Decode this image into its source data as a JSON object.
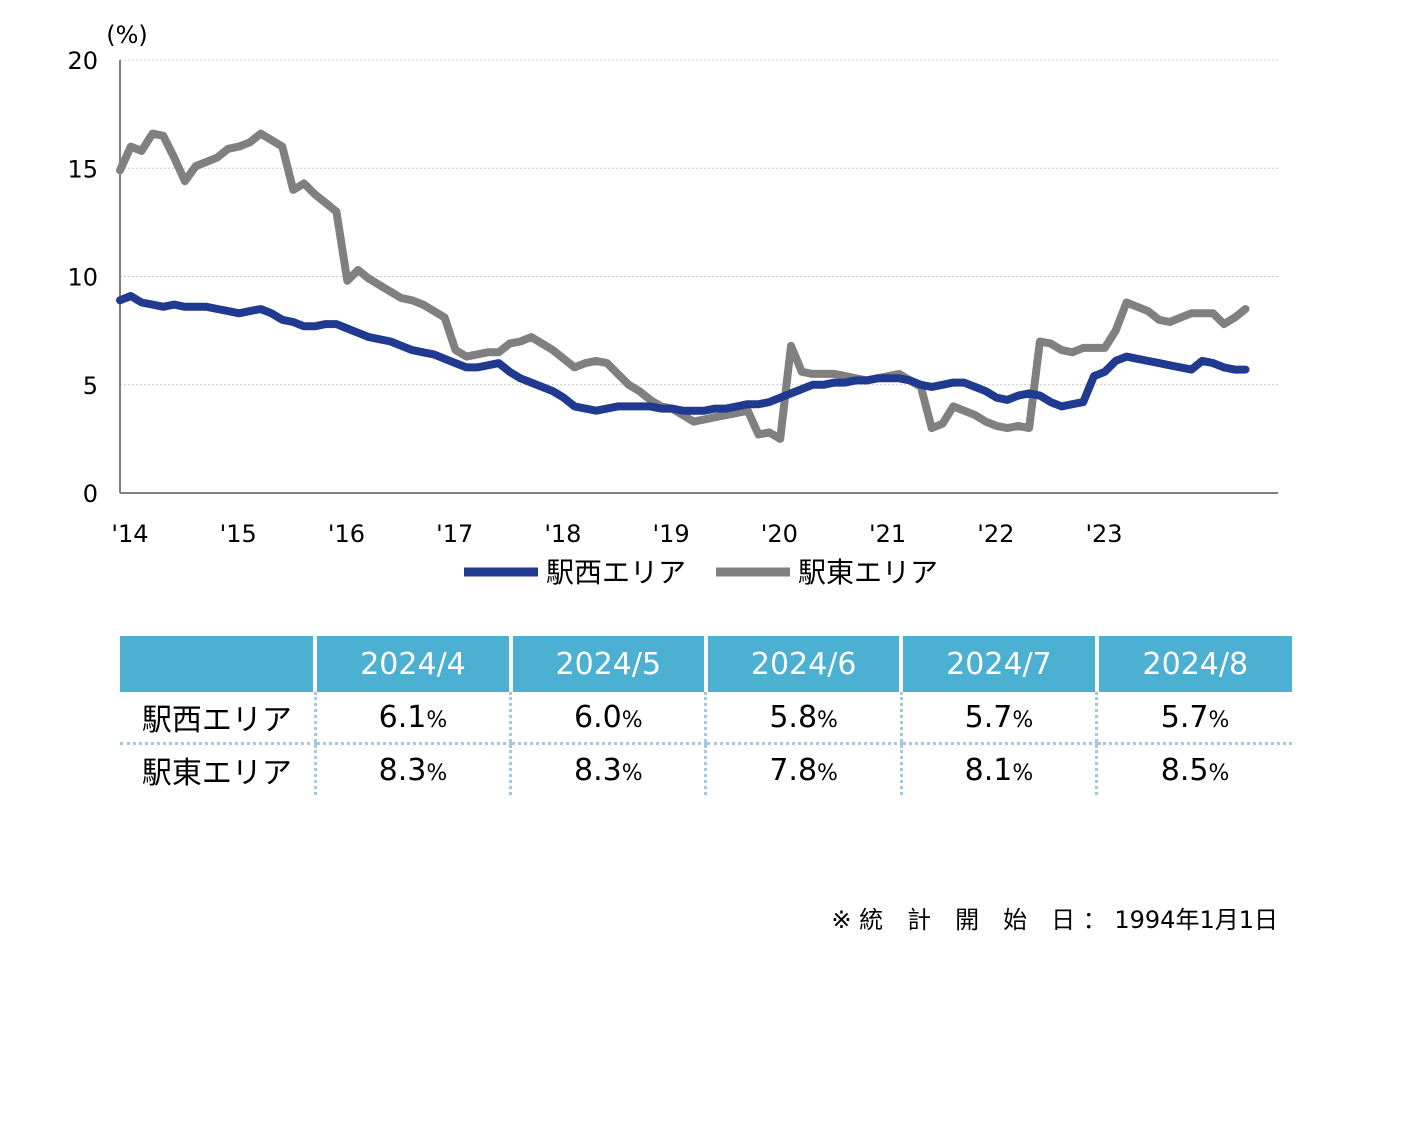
{
  "chart_data": {
    "type": "line",
    "y_unit": "(%)",
    "ylim": [
      0,
      20
    ],
    "yticks": [
      0,
      5,
      10,
      15,
      20
    ],
    "xlim": [
      2014,
      2024.7
    ],
    "xticks": [
      {
        "value": 2014,
        "label": "'14"
      },
      {
        "value": 2015,
        "label": "'15"
      },
      {
        "value": 2016,
        "label": "'16"
      },
      {
        "value": 2017,
        "label": "'17"
      },
      {
        "value": 2018,
        "label": "'18"
      },
      {
        "value": 2019,
        "label": "'19"
      },
      {
        "value": 2020,
        "label": "'20"
      },
      {
        "value": 2021,
        "label": "'21"
      },
      {
        "value": 2022,
        "label": "'22"
      },
      {
        "value": 2023,
        "label": "'23"
      }
    ],
    "grid": true,
    "legend_position": "bottom",
    "series": [
      {
        "name": "駅西エリア",
        "color": "#1f3a8f",
        "points": [
          [
            2014.0,
            8.9
          ],
          [
            2014.1,
            9.1
          ],
          [
            2014.2,
            8.8
          ],
          [
            2014.3,
            8.7
          ],
          [
            2014.4,
            8.6
          ],
          [
            2014.5,
            8.7
          ],
          [
            2014.6,
            8.6
          ],
          [
            2014.7,
            8.6
          ],
          [
            2014.8,
            8.6
          ],
          [
            2014.9,
            8.5
          ],
          [
            2015.0,
            8.4
          ],
          [
            2015.1,
            8.3
          ],
          [
            2015.2,
            8.4
          ],
          [
            2015.3,
            8.5
          ],
          [
            2015.4,
            8.3
          ],
          [
            2015.5,
            8.0
          ],
          [
            2015.6,
            7.9
          ],
          [
            2015.7,
            7.7
          ],
          [
            2015.8,
            7.7
          ],
          [
            2015.9,
            7.8
          ],
          [
            2016.0,
            7.8
          ],
          [
            2016.1,
            7.6
          ],
          [
            2016.2,
            7.4
          ],
          [
            2016.3,
            7.2
          ],
          [
            2016.4,
            7.1
          ],
          [
            2016.5,
            7.0
          ],
          [
            2016.6,
            6.8
          ],
          [
            2016.7,
            6.6
          ],
          [
            2016.8,
            6.5
          ],
          [
            2016.9,
            6.4
          ],
          [
            2017.0,
            6.2
          ],
          [
            2017.1,
            6.0
          ],
          [
            2017.2,
            5.8
          ],
          [
            2017.3,
            5.8
          ],
          [
            2017.4,
            5.9
          ],
          [
            2017.5,
            6.0
          ],
          [
            2017.6,
            5.6
          ],
          [
            2017.7,
            5.3
          ],
          [
            2017.8,
            5.1
          ],
          [
            2017.9,
            4.9
          ],
          [
            2018.0,
            4.7
          ],
          [
            2018.1,
            4.4
          ],
          [
            2018.2,
            4.0
          ],
          [
            2018.3,
            3.9
          ],
          [
            2018.4,
            3.8
          ],
          [
            2018.5,
            3.9
          ],
          [
            2018.6,
            4.0
          ],
          [
            2018.7,
            4.0
          ],
          [
            2018.8,
            4.0
          ],
          [
            2018.9,
            4.0
          ],
          [
            2019.0,
            3.9
          ],
          [
            2019.1,
            3.9
          ],
          [
            2019.2,
            3.8
          ],
          [
            2019.3,
            3.8
          ],
          [
            2019.4,
            3.8
          ],
          [
            2019.5,
            3.9
          ],
          [
            2019.6,
            3.9
          ],
          [
            2019.7,
            4.0
          ],
          [
            2019.8,
            4.1
          ],
          [
            2019.9,
            4.1
          ],
          [
            2020.0,
            4.2
          ],
          [
            2020.1,
            4.4
          ],
          [
            2020.2,
            4.6
          ],
          [
            2020.3,
            4.8
          ],
          [
            2020.4,
            5.0
          ],
          [
            2020.5,
            5.0
          ],
          [
            2020.6,
            5.1
          ],
          [
            2020.7,
            5.1
          ],
          [
            2020.8,
            5.2
          ],
          [
            2020.9,
            5.2
          ],
          [
            2021.0,
            5.3
          ],
          [
            2021.1,
            5.3
          ],
          [
            2021.2,
            5.3
          ],
          [
            2021.3,
            5.2
          ],
          [
            2021.4,
            5.0
          ],
          [
            2021.5,
            4.9
          ],
          [
            2021.6,
            5.0
          ],
          [
            2021.7,
            5.1
          ],
          [
            2021.8,
            5.1
          ],
          [
            2021.9,
            4.9
          ],
          [
            2022.0,
            4.7
          ],
          [
            2022.1,
            4.4
          ],
          [
            2022.2,
            4.3
          ],
          [
            2022.3,
            4.5
          ],
          [
            2022.4,
            4.6
          ],
          [
            2022.5,
            4.5
          ],
          [
            2022.6,
            4.2
          ],
          [
            2022.7,
            4.0
          ],
          [
            2022.8,
            4.1
          ],
          [
            2022.9,
            4.2
          ],
          [
            2023.0,
            5.4
          ],
          [
            2023.1,
            5.6
          ],
          [
            2023.2,
            6.1
          ],
          [
            2023.3,
            6.3
          ],
          [
            2023.4,
            6.2
          ],
          [
            2023.5,
            6.1
          ],
          [
            2023.6,
            6.0
          ],
          [
            2023.7,
            5.9
          ],
          [
            2023.8,
            5.8
          ],
          [
            2023.9,
            5.7
          ],
          [
            2024.0,
            6.1
          ],
          [
            2024.1,
            6.0
          ],
          [
            2024.2,
            5.8
          ],
          [
            2024.3,
            5.7
          ],
          [
            2024.4,
            5.7
          ]
        ]
      },
      {
        "name": "駅東エリア",
        "color": "#808080",
        "points": [
          [
            2014.0,
            14.9
          ],
          [
            2014.1,
            16.0
          ],
          [
            2014.2,
            15.8
          ],
          [
            2014.3,
            16.6
          ],
          [
            2014.4,
            16.5
          ],
          [
            2014.5,
            15.5
          ],
          [
            2014.6,
            14.4
          ],
          [
            2014.7,
            15.1
          ],
          [
            2014.8,
            15.3
          ],
          [
            2014.9,
            15.5
          ],
          [
            2015.0,
            15.9
          ],
          [
            2015.1,
            16.0
          ],
          [
            2015.2,
            16.2
          ],
          [
            2015.3,
            16.6
          ],
          [
            2015.4,
            16.3
          ],
          [
            2015.5,
            16.0
          ],
          [
            2015.6,
            14.0
          ],
          [
            2015.7,
            14.3
          ],
          [
            2015.8,
            13.8
          ],
          [
            2015.9,
            13.4
          ],
          [
            2016.0,
            13.0
          ],
          [
            2016.1,
            9.8
          ],
          [
            2016.2,
            10.3
          ],
          [
            2016.3,
            9.9
          ],
          [
            2016.4,
            9.6
          ],
          [
            2016.5,
            9.3
          ],
          [
            2016.6,
            9.0
          ],
          [
            2016.7,
            8.9
          ],
          [
            2016.8,
            8.7
          ],
          [
            2016.9,
            8.4
          ],
          [
            2017.0,
            8.1
          ],
          [
            2017.1,
            6.6
          ],
          [
            2017.2,
            6.3
          ],
          [
            2017.3,
            6.4
          ],
          [
            2017.4,
            6.5
          ],
          [
            2017.5,
            6.5
          ],
          [
            2017.6,
            6.9
          ],
          [
            2017.7,
            7.0
          ],
          [
            2017.8,
            7.2
          ],
          [
            2017.9,
            6.9
          ],
          [
            2018.0,
            6.6
          ],
          [
            2018.1,
            6.2
          ],
          [
            2018.2,
            5.8
          ],
          [
            2018.3,
            6.0
          ],
          [
            2018.4,
            6.1
          ],
          [
            2018.5,
            6.0
          ],
          [
            2018.6,
            5.5
          ],
          [
            2018.7,
            5.0
          ],
          [
            2018.8,
            4.7
          ],
          [
            2018.9,
            4.3
          ],
          [
            2019.0,
            4.0
          ],
          [
            2019.1,
            3.9
          ],
          [
            2019.2,
            3.6
          ],
          [
            2019.3,
            3.3
          ],
          [
            2019.4,
            3.4
          ],
          [
            2019.5,
            3.5
          ],
          [
            2019.6,
            3.6
          ],
          [
            2019.7,
            3.7
          ],
          [
            2019.8,
            3.8
          ],
          [
            2019.9,
            2.7
          ],
          [
            2020.0,
            2.8
          ],
          [
            2020.1,
            2.5
          ],
          [
            2020.2,
            6.8
          ],
          [
            2020.3,
            5.6
          ],
          [
            2020.4,
            5.5
          ],
          [
            2020.5,
            5.5
          ],
          [
            2020.6,
            5.5
          ],
          [
            2020.7,
            5.4
          ],
          [
            2020.8,
            5.3
          ],
          [
            2020.9,
            5.2
          ],
          [
            2021.0,
            5.3
          ],
          [
            2021.1,
            5.4
          ],
          [
            2021.2,
            5.5
          ],
          [
            2021.3,
            5.2
          ],
          [
            2021.4,
            4.9
          ],
          [
            2021.5,
            3.0
          ],
          [
            2021.6,
            3.2
          ],
          [
            2021.7,
            4.0
          ],
          [
            2021.8,
            3.8
          ],
          [
            2021.9,
            3.6
          ],
          [
            2022.0,
            3.3
          ],
          [
            2022.1,
            3.1
          ],
          [
            2022.2,
            3.0
          ],
          [
            2022.3,
            3.1
          ],
          [
            2022.4,
            3.0
          ],
          [
            2022.5,
            7.0
          ],
          [
            2022.6,
            6.9
          ],
          [
            2022.7,
            6.6
          ],
          [
            2022.8,
            6.5
          ],
          [
            2022.9,
            6.7
          ],
          [
            2023.0,
            6.7
          ],
          [
            2023.1,
            6.7
          ],
          [
            2023.2,
            7.5
          ],
          [
            2023.3,
            8.8
          ],
          [
            2023.4,
            8.6
          ],
          [
            2023.5,
            8.4
          ],
          [
            2023.6,
            8.0
          ],
          [
            2023.7,
            7.9
          ],
          [
            2023.8,
            8.1
          ],
          [
            2023.9,
            8.3
          ],
          [
            2024.0,
            8.3
          ],
          [
            2024.1,
            8.3
          ],
          [
            2024.2,
            7.8
          ],
          [
            2024.3,
            8.1
          ],
          [
            2024.4,
            8.5
          ]
        ]
      }
    ]
  },
  "table": {
    "headers": [
      "",
      "2024/4",
      "2024/5",
      "2024/6",
      "2024/7",
      "2024/8"
    ],
    "unit": "%",
    "rows": [
      {
        "label": "駅西エリア",
        "values": [
          "6.1",
          "6.0",
          "5.8",
          "5.7",
          "5.7"
        ]
      },
      {
        "label": "駅東エリア",
        "values": [
          "8.3",
          "8.3",
          "7.8",
          "8.1",
          "8.5"
        ]
      }
    ]
  },
  "footnote": "※ 統　計　開　始　日 ： 1994年1月1日"
}
